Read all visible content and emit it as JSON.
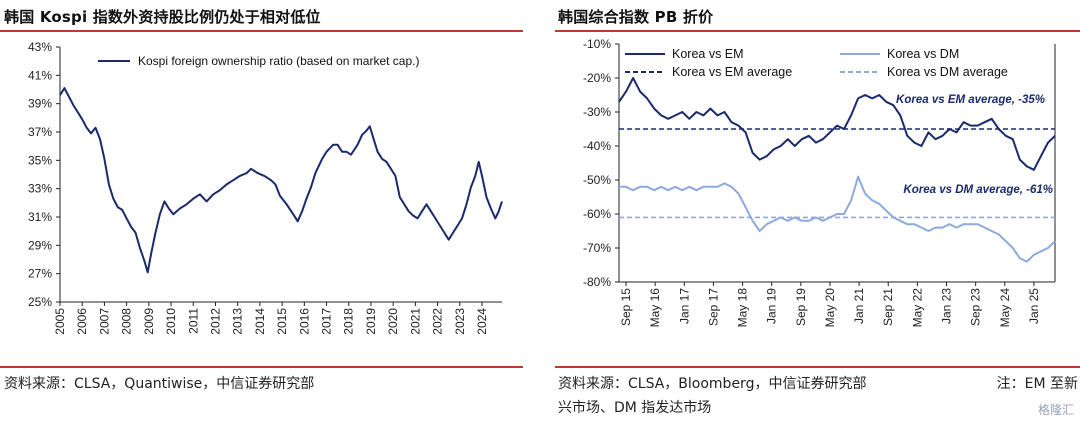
{
  "left": {
    "title": "韩国 Kospi 指数外资持股比例仍处于相对低位",
    "source": "资料来源：CLSA，Quantiwise，中信证券研究部"
  },
  "right": {
    "title": "韩国综合指数 PB 折价",
    "source_line1": "资料来源：CLSA，Bloomberg，中信证券研究部",
    "note": "注：EM 至新",
    "source_line2": "兴市场、DM 指发达市场"
  },
  "watermark": "格隆汇",
  "colors": {
    "navy": "#1a2a6c",
    "light_blue": "#8ea9db",
    "rule_red": "#c0392b"
  },
  "chart_data": [
    {
      "type": "line",
      "legend_position": "top",
      "ylim": [
        25,
        43
      ],
      "xlim": [
        2005,
        2024.9
      ],
      "yticks": [
        "43%",
        "41%",
        "39%",
        "37%",
        "35%",
        "33%",
        "31%",
        "29%",
        "27%",
        "25%"
      ],
      "ytick_values": [
        43,
        41,
        39,
        37,
        35,
        33,
        31,
        29,
        27,
        25
      ],
      "xticks": [
        "2005",
        "2006",
        "2007",
        "2008",
        "2009",
        "2010",
        "2011",
        "2012",
        "2013",
        "2014",
        "2015",
        "2016",
        "2017",
        "2018",
        "2019",
        "2020",
        "2021",
        "2022",
        "2023",
        "2024"
      ],
      "series": [
        {
          "name": "Kospi foreign ownership ratio (based on market cap.)",
          "color": "#1a2a6c",
          "points": [
            [
              2005.0,
              39.6
            ],
            [
              2005.2,
              40.1
            ],
            [
              2005.4,
              39.5
            ],
            [
              2005.6,
              38.9
            ],
            [
              2005.8,
              38.4
            ],
            [
              2006.0,
              37.9
            ],
            [
              2006.2,
              37.3
            ],
            [
              2006.4,
              36.9
            ],
            [
              2006.6,
              37.3
            ],
            [
              2006.8,
              36.5
            ],
            [
              2007.0,
              35.1
            ],
            [
              2007.2,
              33.3
            ],
            [
              2007.4,
              32.3
            ],
            [
              2007.6,
              31.7
            ],
            [
              2007.8,
              31.5
            ],
            [
              2008.0,
              30.9
            ],
            [
              2008.2,
              30.3
            ],
            [
              2008.4,
              29.9
            ],
            [
              2008.6,
              28.8
            ],
            [
              2008.8,
              27.9
            ],
            [
              2008.95,
              27.1
            ],
            [
              2009.1,
              28.4
            ],
            [
              2009.3,
              29.9
            ],
            [
              2009.5,
              31.2
            ],
            [
              2009.7,
              32.1
            ],
            [
              2009.9,
              31.6
            ],
            [
              2010.1,
              31.2
            ],
            [
              2010.4,
              31.6
            ],
            [
              2010.7,
              31.9
            ],
            [
              2011.0,
              32.3
            ],
            [
              2011.3,
              32.6
            ],
            [
              2011.6,
              32.1
            ],
            [
              2011.9,
              32.6
            ],
            [
              2012.2,
              32.9
            ],
            [
              2012.5,
              33.3
            ],
            [
              2012.8,
              33.6
            ],
            [
              2013.1,
              33.9
            ],
            [
              2013.4,
              34.1
            ],
            [
              2013.6,
              34.4
            ],
            [
              2013.9,
              34.1
            ],
            [
              2014.2,
              33.9
            ],
            [
              2014.5,
              33.6
            ],
            [
              2014.7,
              33.3
            ],
            [
              2014.9,
              32.5
            ],
            [
              2015.2,
              31.9
            ],
            [
              2015.5,
              31.2
            ],
            [
              2015.7,
              30.7
            ],
            [
              2015.9,
              31.4
            ],
            [
              2016.1,
              32.3
            ],
            [
              2016.3,
              33.1
            ],
            [
              2016.5,
              34.1
            ],
            [
              2016.8,
              35.1
            ],
            [
              2017.0,
              35.6
            ],
            [
              2017.3,
              36.1
            ],
            [
              2017.5,
              36.1
            ],
            [
              2017.7,
              35.6
            ],
            [
              2017.9,
              35.6
            ],
            [
              2018.1,
              35.4
            ],
            [
              2018.4,
              36.1
            ],
            [
              2018.6,
              36.8
            ],
            [
              2018.8,
              37.1
            ],
            [
              2018.95,
              37.4
            ],
            [
              2019.1,
              36.6
            ],
            [
              2019.3,
              35.6
            ],
            [
              2019.5,
              35.1
            ],
            [
              2019.7,
              34.9
            ],
            [
              2019.9,
              34.4
            ],
            [
              2020.1,
              33.9
            ],
            [
              2020.3,
              32.4
            ],
            [
              2020.5,
              31.9
            ],
            [
              2020.7,
              31.4
            ],
            [
              2020.9,
              31.1
            ],
            [
              2021.1,
              30.9
            ],
            [
              2021.3,
              31.4
            ],
            [
              2021.5,
              31.9
            ],
            [
              2021.7,
              31.4
            ],
            [
              2021.9,
              30.9
            ],
            [
              2022.1,
              30.4
            ],
            [
              2022.3,
              29.9
            ],
            [
              2022.5,
              29.4
            ],
            [
              2022.7,
              29.9
            ],
            [
              2022.9,
              30.4
            ],
            [
              2023.1,
              30.9
            ],
            [
              2023.3,
              31.9
            ],
            [
              2023.5,
              33.1
            ],
            [
              2023.7,
              33.9
            ],
            [
              2023.85,
              34.9
            ],
            [
              2024.0,
              33.9
            ],
            [
              2024.2,
              32.4
            ],
            [
              2024.4,
              31.6
            ],
            [
              2024.6,
              30.9
            ],
            [
              2024.75,
              31.4
            ],
            [
              2024.9,
              32.1
            ]
          ]
        }
      ]
    },
    {
      "type": "line",
      "legend_position": "top",
      "ylim": [
        -80,
        -10
      ],
      "yticks": [
        "-10%",
        "-20%",
        "-30%",
        "-40%",
        "-50%",
        "-60%",
        "-70%",
        "-80%"
      ],
      "ytick_values": [
        -10,
        -20,
        -30,
        -40,
        -50,
        -60,
        -70,
        -80
      ],
      "xticks": [
        "Sep 15",
        "May 16",
        "Jan 17",
        "Sep 17",
        "May 18",
        "Jan 19",
        "Sep 19",
        "May 20",
        "Jan 21",
        "Sep 21",
        "May 22",
        "Jan 23",
        "Sep 23",
        "May 24",
        "Jan 25"
      ],
      "annotations": [
        "Korea vs EM average, -35%",
        "Korea vs DM average, -61%"
      ],
      "series": [
        {
          "name": "Korea vs EM",
          "color": "#1a2a6c",
          "style": "solid",
          "points": [
            [
              0,
              -27
            ],
            [
              1,
              -24
            ],
            [
              2,
              -20
            ],
            [
              3,
              -24
            ],
            [
              4,
              -26
            ],
            [
              5,
              -29
            ],
            [
              6,
              -31
            ],
            [
              7,
              -32
            ],
            [
              8,
              -31
            ],
            [
              9,
              -30
            ],
            [
              10,
              -32
            ],
            [
              11,
              -30
            ],
            [
              12,
              -31
            ],
            [
              13,
              -29
            ],
            [
              14,
              -31
            ],
            [
              15,
              -30
            ],
            [
              16,
              -33
            ],
            [
              17,
              -34
            ],
            [
              18,
              -36
            ],
            [
              19,
              -42
            ],
            [
              20,
              -44
            ],
            [
              21,
              -43
            ],
            [
              22,
              -41
            ],
            [
              23,
              -40
            ],
            [
              24,
              -38
            ],
            [
              25,
              -40
            ],
            [
              26,
              -38
            ],
            [
              27,
              -37
            ],
            [
              28,
              -39
            ],
            [
              29,
              -38
            ],
            [
              30,
              -36
            ],
            [
              31,
              -34
            ],
            [
              32,
              -35
            ],
            [
              33,
              -31
            ],
            [
              34,
              -26
            ],
            [
              35,
              -25
            ],
            [
              36,
              -26
            ],
            [
              37,
              -25
            ],
            [
              38,
              -27
            ],
            [
              39,
              -28
            ],
            [
              40,
              -31
            ],
            [
              41,
              -37
            ],
            [
              42,
              -39
            ],
            [
              43,
              -40
            ],
            [
              44,
              -36
            ],
            [
              45,
              -38
            ],
            [
              46,
              -37
            ],
            [
              47,
              -35
            ],
            [
              48,
              -36
            ],
            [
              49,
              -33
            ],
            [
              50,
              -34
            ],
            [
              51,
              -34
            ],
            [
              52,
              -33
            ],
            [
              53,
              -32
            ],
            [
              54,
              -35
            ],
            [
              55,
              -37
            ],
            [
              56,
              -38
            ],
            [
              57,
              -44
            ],
            [
              58,
              -46
            ],
            [
              59,
              -47
            ],
            [
              60,
              -43
            ],
            [
              61,
              -39
            ],
            [
              62,
              -37
            ]
          ]
        },
        {
          "name": "Korea vs DM",
          "color": "#8ea9db",
          "style": "solid",
          "points": [
            [
              0,
              -52
            ],
            [
              1,
              -52
            ],
            [
              2,
              -53
            ],
            [
              3,
              -52
            ],
            [
              4,
              -52
            ],
            [
              5,
              -53
            ],
            [
              6,
              -52
            ],
            [
              7,
              -53
            ],
            [
              8,
              -52
            ],
            [
              9,
              -53
            ],
            [
              10,
              -52
            ],
            [
              11,
              -53
            ],
            [
              12,
              -52
            ],
            [
              13,
              -52
            ],
            [
              14,
              -52
            ],
            [
              15,
              -51
            ],
            [
              16,
              -52
            ],
            [
              17,
              -54
            ],
            [
              18,
              -58
            ],
            [
              19,
              -62
            ],
            [
              20,
              -65
            ],
            [
              21,
              -63
            ],
            [
              22,
              -62
            ],
            [
              23,
              -61
            ],
            [
              24,
              -62
            ],
            [
              25,
              -61
            ],
            [
              26,
              -62
            ],
            [
              27,
              -62
            ],
            [
              28,
              -61
            ],
            [
              29,
              -62
            ],
            [
              30,
              -61
            ],
            [
              31,
              -60
            ],
            [
              32,
              -60
            ],
            [
              33,
              -56
            ],
            [
              34,
              -49
            ],
            [
              35,
              -54
            ],
            [
              36,
              -56
            ],
            [
              37,
              -57
            ],
            [
              38,
              -59
            ],
            [
              39,
              -61
            ],
            [
              40,
              -62
            ],
            [
              41,
              -63
            ],
            [
              42,
              -63
            ],
            [
              43,
              -64
            ],
            [
              44,
              -65
            ],
            [
              45,
              -64
            ],
            [
              46,
              -64
            ],
            [
              47,
              -63
            ],
            [
              48,
              -64
            ],
            [
              49,
              -63
            ],
            [
              50,
              -63
            ],
            [
              51,
              -63
            ],
            [
              52,
              -64
            ],
            [
              53,
              -65
            ],
            [
              54,
              -66
            ],
            [
              55,
              -68
            ],
            [
              56,
              -70
            ],
            [
              57,
              -73
            ],
            [
              58,
              -74
            ],
            [
              59,
              -72
            ],
            [
              60,
              -71
            ],
            [
              61,
              -70
            ],
            [
              62,
              -68
            ]
          ]
        },
        {
          "name": "Korea vs EM average",
          "color": "#1a2a6c",
          "style": "dashed",
          "value": -35
        },
        {
          "name": "Korea vs DM average",
          "color": "#8ea9db",
          "style": "dashed",
          "value": -61
        }
      ]
    }
  ]
}
